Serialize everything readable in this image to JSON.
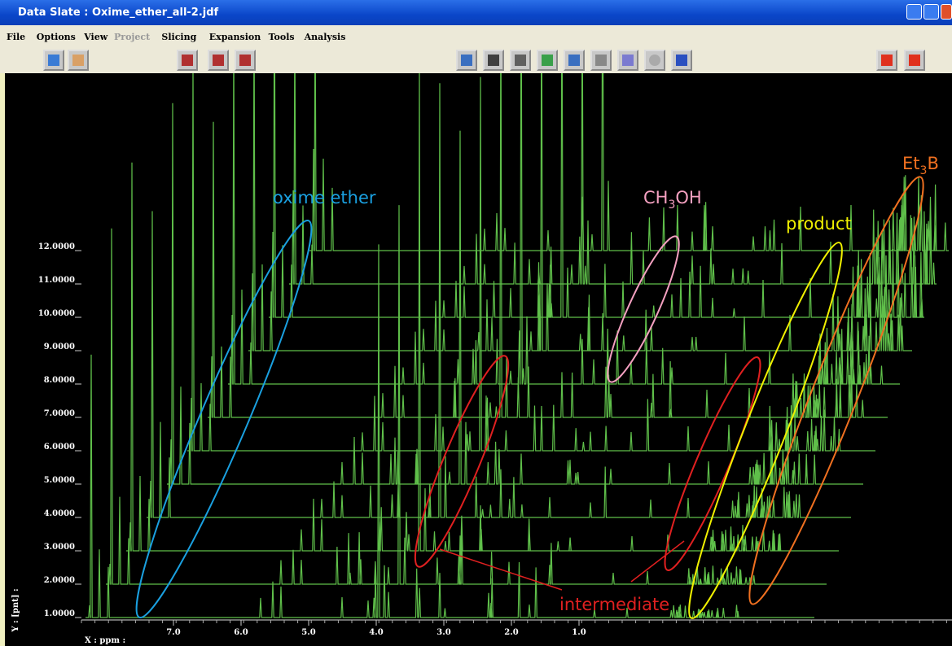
{
  "window": {
    "title": "Data Slate : Oxime_ether_all-2.jdf"
  },
  "menu": [
    "File",
    "Options",
    "View",
    "Project",
    "Slicing",
    "Expansion",
    "Tools",
    "Analysis"
  ],
  "plot": {
    "y_axis_label": "Y : [pnt] :",
    "y_ticks": [
      "1.0000",
      "2.0000",
      "3.0000",
      "4.0000",
      "5.0000",
      "6.0000",
      "7.0000",
      "8.0000",
      "9.0000",
      "10.0000",
      "11.0000",
      "12.0000"
    ],
    "x_axis_label": "X : ppm :",
    "x_ticks": [
      "7.0",
      "6.0",
      "5.0",
      "4.0",
      "3.0",
      "2.0",
      "1.0"
    ],
    "annotations": {
      "oxime_ether": "oxime ether",
      "ch3oh": {
        "main": "CH",
        "sub": "3",
        "rest": "OH"
      },
      "product": "product",
      "et3b": {
        "main": "Et",
        "sub": "3",
        "rest": "B"
      },
      "intermediate": "intermediate"
    }
  }
}
